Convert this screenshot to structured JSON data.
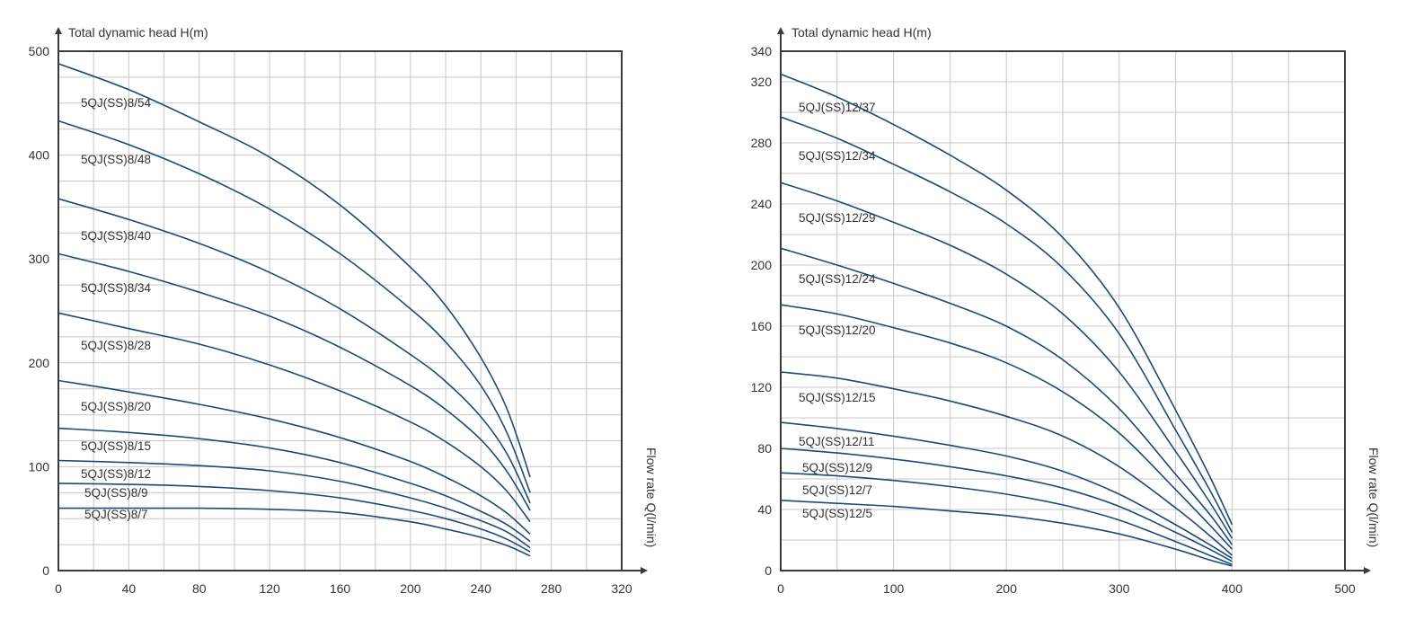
{
  "chart_data": [
    {
      "type": "line",
      "ylabel": "Total dynamic head H(m)",
      "xlabel": "Flow rate Q(l/min)",
      "xlim": [
        0,
        320
      ],
      "ylim": [
        0,
        500
      ],
      "x_ticks": [
        "0",
        "40",
        "80",
        "120",
        "160",
        "200",
        "240",
        "280",
        "320"
      ],
      "y_ticks": [
        "0",
        "100",
        "200",
        "300",
        "400",
        "500"
      ],
      "grid": true,
      "series": [
        {
          "name": "5QJ(SS)8/54",
          "points": [
            [
              0,
              488
            ],
            [
              40,
              463
            ],
            [
              80,
              432
            ],
            [
              120,
              398
            ],
            [
              160,
              352
            ],
            [
              200,
              292
            ],
            [
              220,
              255
            ],
            [
              240,
              205
            ],
            [
              255,
              155
            ],
            [
              268,
              90
            ]
          ]
        },
        {
          "name": "5QJ(SS)8/48",
          "points": [
            [
              0,
              433
            ],
            [
              40,
              410
            ],
            [
              80,
              382
            ],
            [
              120,
              348
            ],
            [
              160,
              305
            ],
            [
              200,
              252
            ],
            [
              220,
              220
            ],
            [
              240,
              178
            ],
            [
              255,
              132
            ],
            [
              268,
              75
            ]
          ]
        },
        {
          "name": "5QJ(SS)8/40",
          "points": [
            [
              0,
              358
            ],
            [
              40,
              338
            ],
            [
              80,
              315
            ],
            [
              120,
              287
            ],
            [
              160,
              252
            ],
            [
              200,
              208
            ],
            [
              220,
              182
            ],
            [
              240,
              148
            ],
            [
              255,
              112
            ],
            [
              268,
              65
            ]
          ]
        },
        {
          "name": "5QJ(SS)8/34",
          "points": [
            [
              0,
              305
            ],
            [
              40,
              288
            ],
            [
              80,
              268
            ],
            [
              120,
              245
            ],
            [
              160,
              215
            ],
            [
              200,
              178
            ],
            [
              220,
              155
            ],
            [
              240,
              126
            ],
            [
              255,
              95
            ],
            [
              268,
              58
            ]
          ]
        },
        {
          "name": "5QJ(SS)8/28",
          "points": [
            [
              0,
              248
            ],
            [
              40,
              233
            ],
            [
              80,
              218
            ],
            [
              120,
              198
            ],
            [
              160,
              173
            ],
            [
              200,
              143
            ],
            [
              220,
              124
            ],
            [
              240,
              100
            ],
            [
              255,
              76
            ],
            [
              268,
              47
            ]
          ]
        },
        {
          "name": "5QJ(SS)8/20",
          "points": [
            [
              0,
              183
            ],
            [
              40,
              172
            ],
            [
              80,
              160
            ],
            [
              120,
              146
            ],
            [
              160,
              128
            ],
            [
              200,
              105
            ],
            [
              220,
              90
            ],
            [
              240,
              72
            ],
            [
              255,
              55
            ],
            [
              268,
              35
            ]
          ]
        },
        {
          "name": "5QJ(SS)8/15",
          "points": [
            [
              0,
              137
            ],
            [
              40,
              133
            ],
            [
              80,
              127
            ],
            [
              120,
              118
            ],
            [
              160,
              104
            ],
            [
              200,
              84
            ],
            [
              220,
              72
            ],
            [
              240,
              57
            ],
            [
              255,
              44
            ],
            [
              268,
              28
            ]
          ]
        },
        {
          "name": "5QJ(SS)8/12",
          "points": [
            [
              0,
              106
            ],
            [
              40,
              104
            ],
            [
              80,
              101
            ],
            [
              120,
              96
            ],
            [
              160,
              86
            ],
            [
              200,
              70
            ],
            [
              220,
              60
            ],
            [
              240,
              48
            ],
            [
              255,
              37
            ],
            [
              268,
              22
            ]
          ]
        },
        {
          "name": "5QJ(SS)8/9",
          "points": [
            [
              0,
              84
            ],
            [
              40,
              83
            ],
            [
              80,
              81
            ],
            [
              120,
              77
            ],
            [
              160,
              70
            ],
            [
              200,
              58
            ],
            [
              220,
              50
            ],
            [
              240,
              40
            ],
            [
              255,
              30
            ],
            [
              268,
              18
            ]
          ]
        },
        {
          "name": "5QJ(SS)8/7",
          "points": [
            [
              0,
              60
            ],
            [
              40,
              60
            ],
            [
              80,
              60
            ],
            [
              120,
              59
            ],
            [
              160,
              56
            ],
            [
              200,
              47
            ],
            [
              220,
              40
            ],
            [
              240,
              32
            ],
            [
              255,
              24
            ],
            [
              268,
              14
            ]
          ]
        }
      ]
    },
    {
      "type": "line",
      "ylabel": "Total dynamic head H(m)",
      "xlabel": "Flow rate Q(l/min)",
      "xlim": [
        0,
        500
      ],
      "ylim": [
        0,
        340
      ],
      "x_ticks": [
        "0",
        "100",
        "200",
        "300",
        "400",
        "500"
      ],
      "y_ticks": [
        "0",
        "40",
        "80",
        "120",
        "160",
        "200",
        "240",
        "280",
        "320",
        "340"
      ],
      "grid": true,
      "series": [
        {
          "name": "5QJ(SS)12/37",
          "points": [
            [
              0,
              325
            ],
            [
              50,
              310
            ],
            [
              100,
              292
            ],
            [
              150,
              272
            ],
            [
              200,
              249
            ],
            [
              250,
              218
            ],
            [
              300,
              172
            ],
            [
              350,
              105
            ],
            [
              380,
              62
            ],
            [
              400,
              30
            ]
          ]
        },
        {
          "name": "5QJ(SS)12/34",
          "points": [
            [
              0,
              297
            ],
            [
              50,
              283
            ],
            [
              100,
              266
            ],
            [
              150,
              248
            ],
            [
              200,
              227
            ],
            [
              250,
              198
            ],
            [
              300,
              155
            ],
            [
              350,
              92
            ],
            [
              380,
              53
            ],
            [
              400,
              25
            ]
          ]
        },
        {
          "name": "5QJ(SS)12/29",
          "points": [
            [
              0,
              254
            ],
            [
              50,
              242
            ],
            [
              100,
              228
            ],
            [
              150,
              213
            ],
            [
              200,
              194
            ],
            [
              250,
              168
            ],
            [
              300,
              130
            ],
            [
              350,
              78
            ],
            [
              380,
              45
            ],
            [
              400,
              21
            ]
          ]
        },
        {
          "name": "5QJ(SS)12/24",
          "points": [
            [
              0,
              211
            ],
            [
              50,
              200
            ],
            [
              100,
              188
            ],
            [
              150,
              175
            ],
            [
              200,
              160
            ],
            [
              250,
              138
            ],
            [
              300,
              106
            ],
            [
              350,
              63
            ],
            [
              380,
              37
            ],
            [
              400,
              17
            ]
          ]
        },
        {
          "name": "5QJ(SS)12/20",
          "points": [
            [
              0,
              174
            ],
            [
              50,
              168
            ],
            [
              100,
              159
            ],
            [
              150,
              149
            ],
            [
              200,
              136
            ],
            [
              250,
              117
            ],
            [
              300,
              90
            ],
            [
              350,
              53
            ],
            [
              380,
              30
            ],
            [
              400,
              14
            ]
          ]
        },
        {
          "name": "5QJ(SS)12/15",
          "points": [
            [
              0,
              130
            ],
            [
              50,
              126
            ],
            [
              100,
              119
            ],
            [
              150,
              111
            ],
            [
              200,
              101
            ],
            [
              250,
              88
            ],
            [
              300,
              68
            ],
            [
              350,
              41
            ],
            [
              380,
              23
            ],
            [
              400,
              10
            ]
          ]
        },
        {
          "name": "5QJ(SS)12/11",
          "points": [
            [
              0,
              97
            ],
            [
              50,
              93
            ],
            [
              100,
              88
            ],
            [
              150,
              82
            ],
            [
              200,
              75
            ],
            [
              250,
              65
            ],
            [
              300,
              50
            ],
            [
              350,
              30
            ],
            [
              380,
              17
            ],
            [
              400,
              8
            ]
          ]
        },
        {
          "name": "5QJ(SS)12/9",
          "points": [
            [
              0,
              80
            ],
            [
              50,
              77
            ],
            [
              100,
              73
            ],
            [
              150,
              68
            ],
            [
              200,
              62
            ],
            [
              250,
              54
            ],
            [
              300,
              42
            ],
            [
              350,
              25
            ],
            [
              380,
              14
            ],
            [
              400,
              6
            ]
          ]
        },
        {
          "name": "5QJ(SS)12/7",
          "points": [
            [
              0,
              64
            ],
            [
              50,
              62
            ],
            [
              100,
              59
            ],
            [
              150,
              55
            ],
            [
              200,
              50
            ],
            [
              250,
              43
            ],
            [
              300,
              33
            ],
            [
              350,
              19
            ],
            [
              380,
              10
            ],
            [
              400,
              4
            ]
          ]
        },
        {
          "name": "5QJ(SS)12/5",
          "points": [
            [
              0,
              46
            ],
            [
              50,
              44
            ],
            [
              100,
              42
            ],
            [
              150,
              39
            ],
            [
              200,
              36
            ],
            [
              250,
              31
            ],
            [
              300,
              24
            ],
            [
              350,
              14
            ],
            [
              380,
              7
            ],
            [
              400,
              3
            ]
          ]
        }
      ]
    }
  ]
}
